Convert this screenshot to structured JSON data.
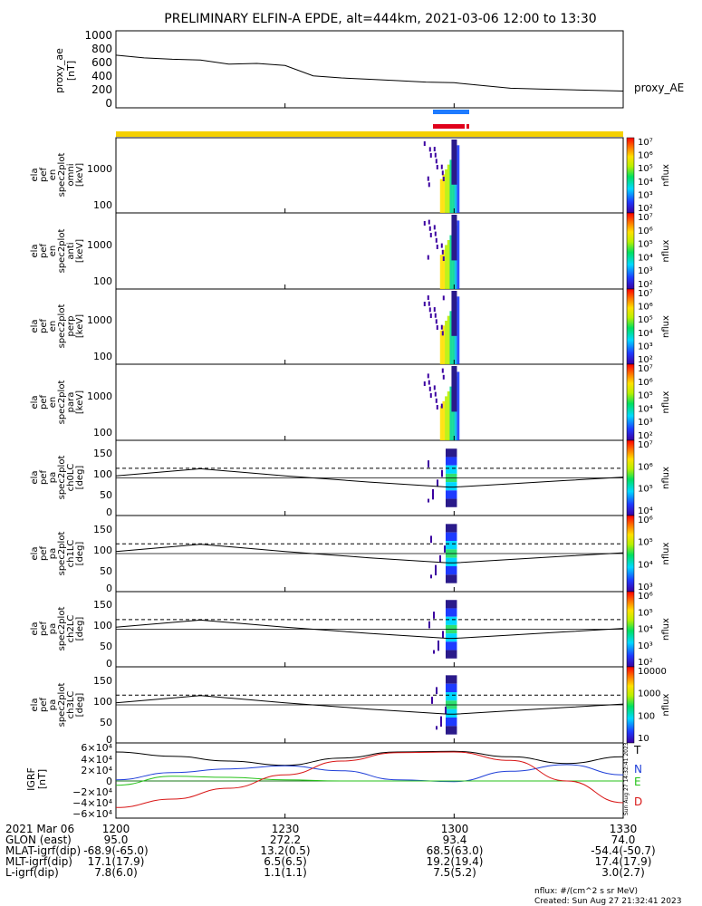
{
  "title": "PRELIMINARY ELFIN-A EPDE, alt=444km, 2021-03-06 12:00 to 13:30",
  "colors": {
    "flag_yellow": "#f5d000",
    "bar_blue": "#1e7bff",
    "bar_red": "#e0001b",
    "field_T": "#000000",
    "field_N": "#1f3fd8",
    "field_E": "#27c21a",
    "field_D": "#d81515"
  },
  "ae_panel": {
    "ylabel_line1": "proxy_ae",
    "ylabel_line2": "[nT]",
    "yticks": [
      "1000",
      "800",
      "600",
      "400",
      "200",
      "0"
    ],
    "legend": "proxy_AE"
  },
  "spec_panels": [
    {
      "ylabel": [
        "ela",
        "pef",
        "en",
        "spec2plot",
        "omni",
        "[keV]"
      ],
      "yticks": [
        "1000",
        "100"
      ],
      "cbar_ticks": [
        "10⁷",
        "10⁶",
        "10⁵",
        "10⁴",
        "10³",
        "10²"
      ],
      "cbar_label": "nflux"
    },
    {
      "ylabel": [
        "ela",
        "pef",
        "en",
        "spec2plot",
        "anti",
        "[keV]"
      ],
      "yticks": [
        "1000",
        "100"
      ],
      "cbar_ticks": [
        "10⁷",
        "10⁶",
        "10⁵",
        "10⁴",
        "10³",
        "10²"
      ],
      "cbar_label": "nflux"
    },
    {
      "ylabel": [
        "ela",
        "pef",
        "en",
        "spec2plot",
        "perp",
        "[keV]"
      ],
      "yticks": [
        "1000",
        "100"
      ],
      "cbar_ticks": [
        "10⁷",
        "10⁶",
        "10⁵",
        "10⁴",
        "10³",
        "10²"
      ],
      "cbar_label": "nflux"
    },
    {
      "ylabel": [
        "ela",
        "pef",
        "en",
        "spec2plot",
        "para",
        "[keV]"
      ],
      "yticks": [
        "1000",
        "100"
      ],
      "cbar_ticks": [
        "10⁷",
        "10⁶",
        "10⁵",
        "10⁴",
        "10³",
        "10²"
      ],
      "cbar_label": "nflux"
    }
  ],
  "pa_panels": [
    {
      "ylabel": [
        "ela",
        "pef",
        "pa",
        "spec2plot",
        "ch0LC",
        "[deg]"
      ],
      "yticks": [
        "150",
        "100",
        "50",
        "0"
      ],
      "cbar_ticks": [
        "10⁷",
        "10⁶",
        "10⁵",
        "10⁴"
      ],
      "cbar_label": "nflux"
    },
    {
      "ylabel": [
        "ela",
        "pef",
        "pa",
        "spec2plot",
        "ch1LC",
        "[deg]"
      ],
      "yticks": [
        "150",
        "100",
        "50",
        "0"
      ],
      "cbar_ticks": [
        "10⁶",
        "10⁵",
        "10⁴",
        "10³"
      ],
      "cbar_label": "nflux"
    },
    {
      "ylabel": [
        "ela",
        "pef",
        "pa",
        "spec2plot",
        "ch2LC",
        "[deg]"
      ],
      "yticks": [
        "150",
        "100",
        "50",
        "0"
      ],
      "cbar_ticks": [
        "10⁶",
        "10⁵",
        "10⁴",
        "10³",
        "10²"
      ],
      "cbar_label": "nflux"
    },
    {
      "ylabel": [
        "ela",
        "pef",
        "pa",
        "spec2plot",
        "ch3LC",
        "[deg]"
      ],
      "yticks": [
        "150",
        "100",
        "50",
        "0"
      ],
      "cbar_ticks": [
        "10000",
        "1000",
        "100",
        "10"
      ],
      "cbar_label": "nflux"
    }
  ],
  "igrf_panel": {
    "ylabel_line1": "IGRF",
    "ylabel_line2": "[nT]",
    "yticks": [
      "6×10⁴",
      "4×10⁴",
      "2×10⁴",
      "0",
      "−2×10⁴",
      "−4×10⁴",
      "−6×10⁴"
    ],
    "legend": [
      "T",
      "N",
      "E",
      "D"
    ],
    "side_stamp": "Sun Aug 27 14:32:41 2023"
  },
  "bottom_table": {
    "rows": [
      {
        "label": "2021 Mar 06",
        "values": [
          "1200",
          "1230",
          "1300",
          "1330"
        ]
      },
      {
        "label": "GLON (east)",
        "values": [
          "95.0",
          "272.2",
          "93.4",
          "74.0"
        ]
      },
      {
        "label": "MLAT-igrf(dip)",
        "values": [
          "-68.9(-65.0)",
          "13.2(0.5)",
          "68.5(63.0)",
          "-54.4(-50.7)"
        ]
      },
      {
        "label": "MLT-igrf(dip)",
        "values": [
          "17.1(17.9)",
          "6.5(6.5)",
          "19.2(19.4)",
          "17.4(17.9)"
        ]
      },
      {
        "label": "L-igrf(dip)",
        "values": [
          "7.8(6.0)",
          "1.1(1.1)",
          "7.5(5.2)",
          "3.0(2.7)"
        ]
      }
    ]
  },
  "footer": {
    "units": "nflux: #/(cm^2 s sr MeV)",
    "created": "Created: Sun Aug 27 21:32:41 2023"
  },
  "chart_data": [
    {
      "type": "line",
      "title": "PRELIMINARY ELFIN-A EPDE, alt=444km, 2021-03-06 12:00 to 13:30",
      "ylabel": "proxy_ae [nT]",
      "ylim": [
        0,
        1050
      ],
      "x_minutes": [
        0,
        5,
        10,
        15,
        20,
        25,
        30,
        35,
        40,
        45,
        50,
        55,
        60,
        65,
        70,
        75,
        80,
        85,
        90
      ],
      "series": [
        {
          "name": "proxy_AE",
          "values": [
            750,
            710,
            690,
            680,
            620,
            630,
            600,
            450,
            420,
            400,
            380,
            360,
            350,
            310,
            270,
            260,
            250,
            240,
            230
          ]
        }
      ]
    },
    {
      "type": "heatmap",
      "ylabel": "energy [keV]",
      "yscale": "log",
      "ylim": [
        60,
        7000
      ],
      "active_window_minutes": [
        57.5,
        60.5
      ],
      "panels": [
        "omni",
        "anti",
        "perp",
        "para"
      ],
      "colorbar_range": [
        "10²",
        "10⁷"
      ]
    },
    {
      "type": "heatmap",
      "ylabel": "pitch angle [deg]",
      "ylim": [
        0,
        180
      ],
      "active_window_minutes": [
        58.5,
        60.5
      ],
      "panels": [
        "ch0LC",
        "ch1LC",
        "ch2LC",
        "ch3LC"
      ],
      "loss_cone_dashed_deg": 113,
      "loss_cone_solid": [
        {
          "x": 0,
          "y": 95
        },
        {
          "x": 15,
          "y": 112
        },
        {
          "x": 30,
          "y": 95
        },
        {
          "x": 45,
          "y": 80
        },
        {
          "x": 59,
          "y": 68
        },
        {
          "x": 60,
          "y": 68
        },
        {
          "x": 70,
          "y": 76
        },
        {
          "x": 80,
          "y": 84
        },
        {
          "x": 90,
          "y": 92
        }
      ]
    },
    {
      "type": "line",
      "ylabel": "IGRF [nT]",
      "ylim": [
        -60000,
        60000
      ],
      "x_minutes": [
        0,
        10,
        20,
        30,
        40,
        50,
        60,
        70,
        80,
        90
      ],
      "series": [
        {
          "name": "T",
          "values": [
            48000,
            41000,
            33000,
            26000,
            38000,
            48000,
            49000,
            40000,
            29000,
            40000
          ]
        },
        {
          "name": "N",
          "values": [
            2000,
            14000,
            20000,
            25000,
            17000,
            2000,
            -1000,
            16000,
            27000,
            10000
          ]
        },
        {
          "name": "E",
          "values": [
            -7000,
            8000,
            6000,
            2000,
            0,
            0,
            0,
            0,
            0,
            0
          ]
        },
        {
          "name": "D",
          "values": [
            -44000,
            -30000,
            -12000,
            10000,
            33000,
            47000,
            48000,
            34000,
            0,
            -36000
          ]
        }
      ]
    }
  ]
}
